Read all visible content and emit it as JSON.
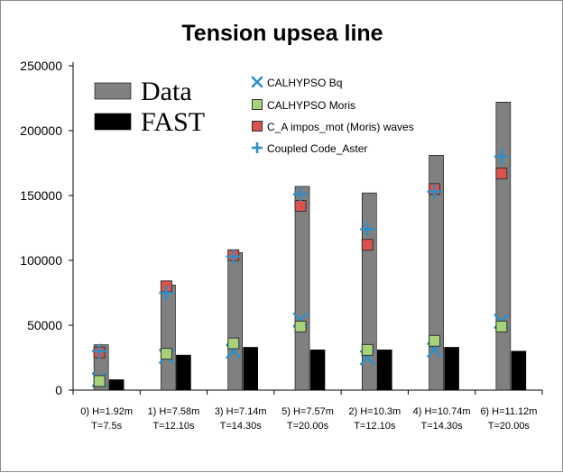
{
  "chart_data": {
    "type": "bar",
    "title": "Tension upsea line",
    "xlabel": "",
    "ylabel": "",
    "ylim": [
      0,
      250000
    ],
    "yticks": [
      0,
      50000,
      100000,
      150000,
      200000,
      250000
    ],
    "categories": [
      [
        "0) H=1.92m",
        "T=7.5s"
      ],
      [
        "1) H=7.58m",
        "T=12.10s"
      ],
      [
        "3) H=7.14m",
        "T=14.30s"
      ],
      [
        "5) H=7.57m",
        "T=20.00s"
      ],
      [
        "2) H=10.3m",
        "T=12.10s"
      ],
      [
        "4) H=10.74m",
        "T=14.30s"
      ],
      [
        "6) H=11.12m",
        "T=20.00s"
      ]
    ],
    "series": [
      {
        "name": "Data",
        "kind": "bar",
        "color": "#808080",
        "values": [
          35000,
          81000,
          106000,
          157000,
          152000,
          181000,
          222000
        ]
      },
      {
        "name": "FAST",
        "kind": "bar",
        "color": "#000000",
        "values": [
          8000,
          27000,
          33000,
          31000,
          31000,
          33000,
          30000
        ]
      },
      {
        "name": "CALHYPSO Bq",
        "kind": "marker",
        "marker": "x",
        "color": "#2e8fc7",
        "values": [
          8000,
          26000,
          30000,
          54000,
          25000,
          31000,
          53000
        ]
      },
      {
        "name": "CALHYPSO Moris",
        "kind": "marker",
        "marker": "square",
        "color": "#a8d27a",
        "values": [
          7000,
          28000,
          36000,
          49000,
          31000,
          38000,
          49000
        ]
      },
      {
        "name": "C_A impos_mot (Moris) waves",
        "kind": "marker",
        "marker": "square",
        "color": "#d9534f",
        "values": [
          29000,
          80000,
          104000,
          142000,
          112000,
          155000,
          167000
        ]
      },
      {
        "name": "Coupled Code_Aster",
        "kind": "marker",
        "marker": "plus",
        "color": "#2e8fc7",
        "values": [
          30000,
          75000,
          103000,
          151000,
          124000,
          153000,
          180000
        ]
      }
    ],
    "legend_placement": "top"
  }
}
